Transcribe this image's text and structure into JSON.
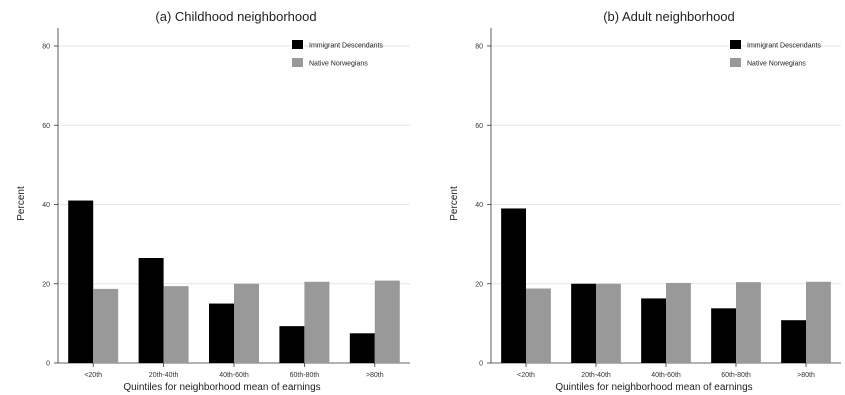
{
  "chart_data": [
    {
      "type": "bar",
      "title": "(a) Childhood neighborhood",
      "xlabel": "Quintiles for neighborhood mean of earnings",
      "ylabel": "Percent",
      "categories": [
        "<20th",
        "20th-40th",
        "40th-60th",
        "60th-80th",
        ">80th"
      ],
      "series": [
        {
          "name": "Immigrant Descendants",
          "color": "#000000",
          "values": [
            41,
            26.5,
            15,
            9.3,
            7.5
          ]
        },
        {
          "name": "Native Norwegians",
          "color": "#999999",
          "values": [
            18.7,
            19.4,
            20,
            20.5,
            20.8
          ]
        }
      ],
      "ylim": [
        0,
        80
      ],
      "yticks": [
        0,
        20,
        40,
        60,
        80
      ],
      "grid": true,
      "legend_position": "top-right"
    },
    {
      "type": "bar",
      "title": "(b) Adult neighborhood",
      "xlabel": "Quintiles for neighborhood mean of earnings",
      "ylabel": "Percent",
      "categories": [
        "<20th",
        "20th-40th",
        "40th-60th",
        "60th-80th",
        ">80th"
      ],
      "series": [
        {
          "name": "Immigrant Descendants",
          "color": "#000000",
          "values": [
            39,
            20,
            16.3,
            13.8,
            10.8
          ]
        },
        {
          "name": "Native Norwegians",
          "color": "#999999",
          "values": [
            18.8,
            20,
            20.2,
            20.4,
            20.5
          ]
        }
      ],
      "ylim": [
        0,
        80
      ],
      "yticks": [
        0,
        20,
        40,
        60,
        80
      ],
      "grid": true,
      "legend_position": "top-right"
    }
  ]
}
